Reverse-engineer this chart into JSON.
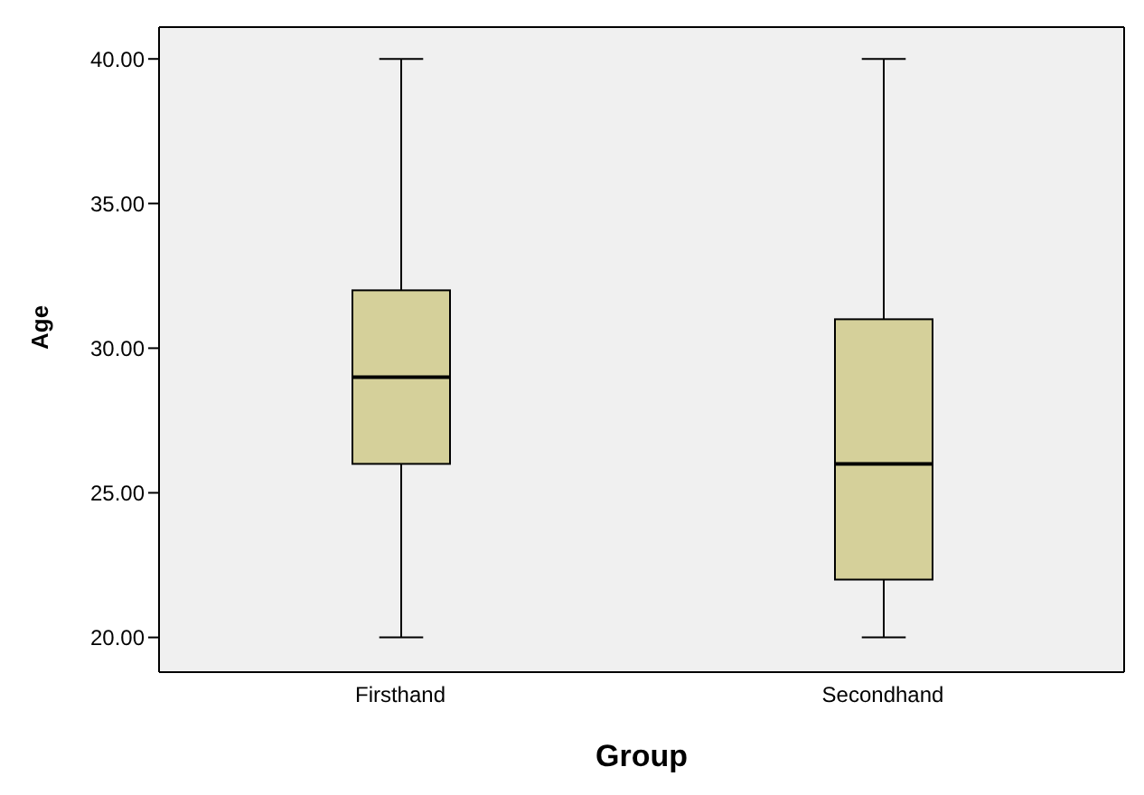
{
  "chart_data": {
    "type": "box",
    "xlabel": "Group",
    "ylabel": "Age",
    "categories": [
      "Firsthand",
      "Secondhand"
    ],
    "boxes": [
      {
        "low": 20,
        "q1": 26,
        "median": 29,
        "q3": 32,
        "high": 40
      },
      {
        "low": 20,
        "q1": 22,
        "median": 26,
        "q3": 31,
        "high": 40
      }
    ],
    "color": "#d5d09a",
    "ylim": [
      18.8,
      41.1
    ],
    "yticks": [
      {
        "value": 20,
        "label": "20.00"
      },
      {
        "value": 25,
        "label": "25.00"
      },
      {
        "value": 30,
        "label": "30.00"
      },
      {
        "value": 35,
        "label": "35.00"
      },
      {
        "value": 40,
        "label": "40.00"
      }
    ],
    "grid": false
  }
}
